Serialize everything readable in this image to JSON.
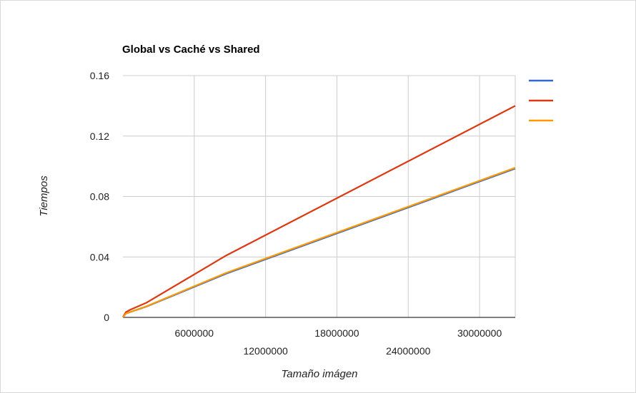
{
  "chart_data": {
    "type": "line",
    "title": "Global vs Caché vs Shared",
    "xlabel": "Tamaño imágen",
    "ylabel": "Tiempos",
    "xlim": [
      0,
      33000000
    ],
    "ylim": [
      0,
      0.16
    ],
    "xticks": [
      6000000,
      12000000,
      18000000,
      24000000,
      30000000
    ],
    "xtick_labels": [
      "6000000",
      "12000000",
      "18000000",
      "24000000",
      "30000000"
    ],
    "yticks": [
      0,
      0.04,
      0.08,
      0.12,
      0.16
    ],
    "ytick_labels": [
      "0",
      "0.04",
      "0.08",
      "0.12",
      "0.16"
    ],
    "grid": true,
    "legend_position": "right",
    "series": [
      {
        "color": "#3366cc",
        "x": [
          0,
          250000,
          600000,
          2000000,
          8700000,
          33000000
        ],
        "y": [
          0.0001,
          0.0025,
          0.0035,
          0.0072,
          0.029,
          0.0985
        ]
      },
      {
        "color": "#dc3912",
        "x": [
          0,
          250000,
          600000,
          2000000,
          8700000,
          33000000
        ],
        "y": [
          0.0002,
          0.0035,
          0.005,
          0.0098,
          0.041,
          0.14
        ]
      },
      {
        "color": "#ff9900",
        "x": [
          0,
          250000,
          600000,
          2000000,
          8700000,
          33000000
        ],
        "y": [
          0.0001,
          0.0025,
          0.0036,
          0.0074,
          0.0295,
          0.099
        ]
      }
    ]
  }
}
